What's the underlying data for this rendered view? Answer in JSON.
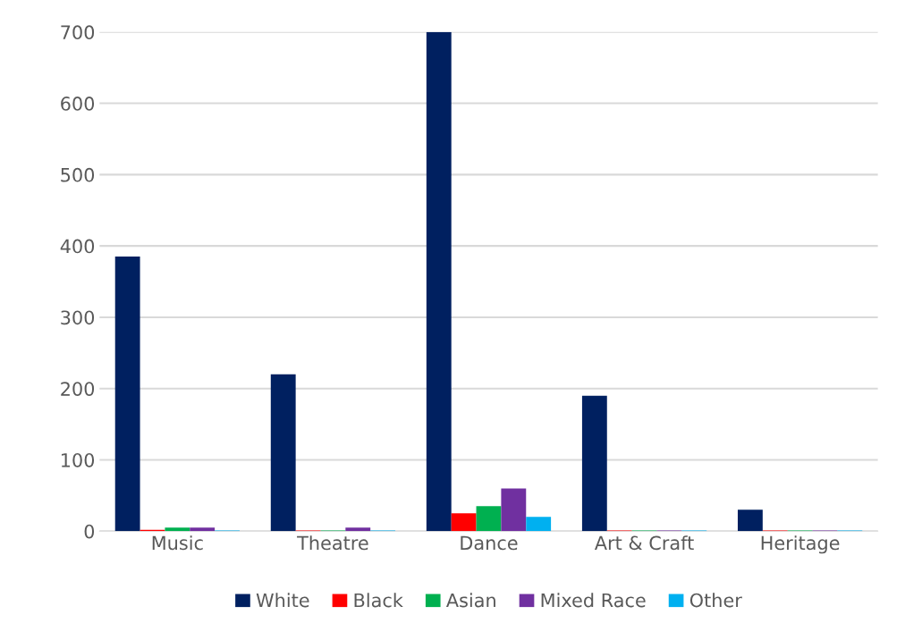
{
  "chart_data": {
    "type": "bar",
    "categories": [
      "Music",
      "Theatre",
      "Dance",
      "Art & Craft",
      "Heritage"
    ],
    "series": [
      {
        "name": "White",
        "color": "#002060",
        "values": [
          385,
          220,
          700,
          190,
          30
        ]
      },
      {
        "name": "Black",
        "color": "#ff0000",
        "values": [
          2,
          1,
          25,
          1,
          1
        ]
      },
      {
        "name": "Asian",
        "color": "#00b050",
        "values": [
          5,
          1,
          35,
          1,
          1
        ]
      },
      {
        "name": "Mixed Race",
        "color": "#7030a0",
        "values": [
          5,
          5,
          60,
          1,
          1
        ]
      },
      {
        "name": "Other",
        "color": "#00b0f0",
        "values": [
          1,
          1,
          20,
          1,
          1
        ]
      }
    ],
    "ylim": [
      0,
      700
    ],
    "yticks": [
      0,
      100,
      200,
      300,
      400,
      500,
      600,
      700
    ],
    "grid": "y",
    "legend": "bottom"
  }
}
